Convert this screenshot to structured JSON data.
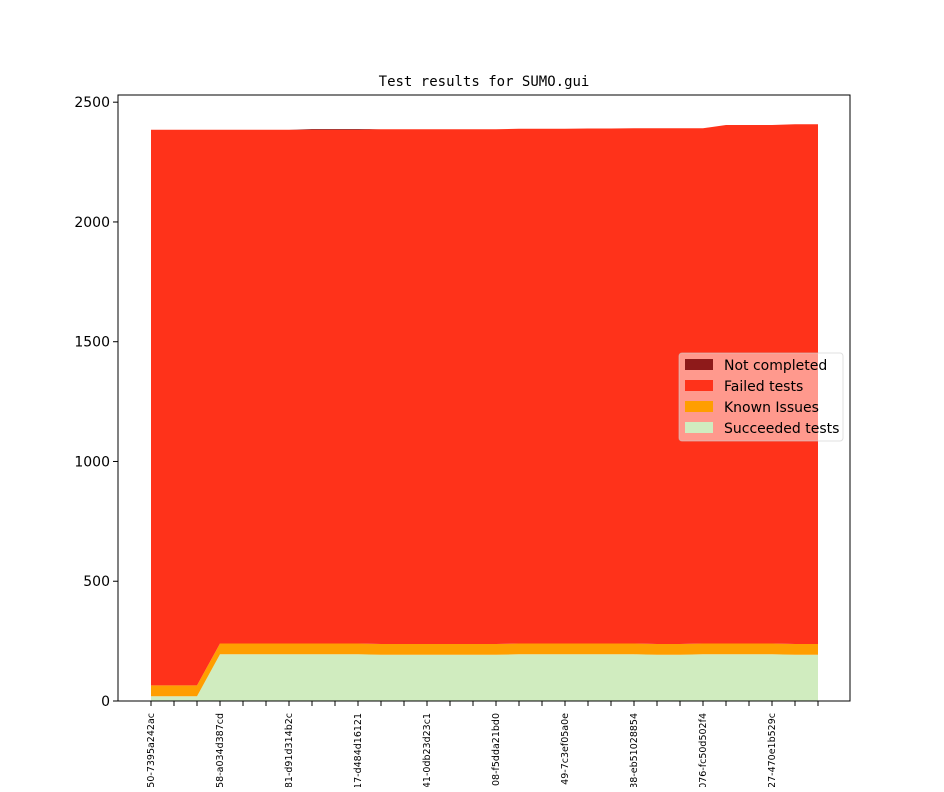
{
  "chart_data": {
    "type": "area",
    "title": "Test results for SUMO.gui",
    "xlabel": "",
    "ylabel": "",
    "ylim": [
      0,
      2530
    ],
    "yticks": [
      0,
      500,
      1000,
      1500,
      2000,
      2500
    ],
    "x_tick_labels": [
      "50-7395a242ac",
      "58-a034d387cd",
      "81-d91d314b2c",
      "17-d484d16121",
      "41-0db23d23c1",
      "08-f5dda21bd0",
      "49-7c3ef05a0e",
      "38-eb51028854",
      "076-fc50d502f4",
      "27-470e1b529c"
    ],
    "x_tick_label_every": 3,
    "n_points": 30,
    "stacked": true,
    "series": [
      {
        "name": "Succeeded tests",
        "color": "#d0ecbf",
        "values": [
          20,
          20,
          20,
          195,
          195,
          195,
          195,
          195,
          195,
          195,
          193,
          193,
          193,
          193,
          193,
          193,
          195,
          195,
          195,
          195,
          195,
          195,
          193,
          193,
          195,
          195,
          195,
          195,
          193,
          193
        ]
      },
      {
        "name": "Known Issues",
        "color": "#ff9e00",
        "values": [
          45,
          45,
          45,
          45,
          45,
          45,
          45,
          45,
          45,
          45,
          45,
          45,
          45,
          45,
          45,
          45,
          45,
          45,
          45,
          45,
          45,
          45,
          45,
          45,
          45,
          45,
          45,
          45,
          45,
          45
        ]
      },
      {
        "name": "Failed tests",
        "color": "#ff321a",
        "values": [
          2320,
          2320,
          2320,
          2145,
          2145,
          2145,
          2145,
          2145,
          2145,
          2145,
          2149,
          2149,
          2149,
          2149,
          2149,
          2149,
          2149,
          2149,
          2149,
          2150,
          2150,
          2151,
          2153,
          2153,
          2151,
          2165,
          2165,
          2165,
          2170,
          2170
        ]
      },
      {
        "name": "Not completed",
        "color": "#8e1a1a",
        "values": [
          0,
          0,
          0,
          0,
          0,
          0,
          0,
          3,
          3,
          3,
          0,
          0,
          0,
          0,
          0,
          0,
          0,
          0,
          0,
          0,
          0,
          0,
          0,
          0,
          0,
          0,
          0,
          0,
          0,
          0
        ]
      }
    ],
    "legend": {
      "placement": "right",
      "entries": [
        "Not completed",
        "Failed tests",
        "Known Issues",
        "Succeeded tests"
      ]
    },
    "grid": false
  }
}
